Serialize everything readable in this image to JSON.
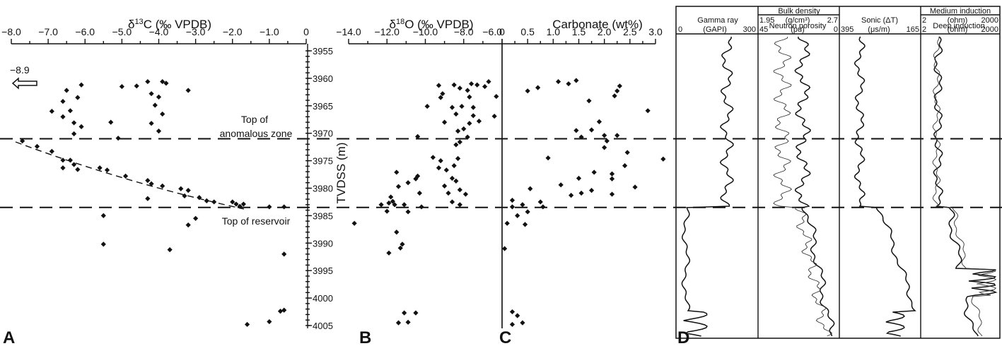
{
  "chart_data": [
    {
      "type": "scatter",
      "panel": "A",
      "title": "δ13C (‰ VPDB)",
      "xlim": [
        -8.0,
        0
      ],
      "x_ticks": [
        "−8.0",
        "−7.0",
        "−6.0",
        "−5.0",
        "−4.0",
        "−3.0",
        "−2.0",
        "−1.0",
        "0"
      ],
      "ylim": [
        3955,
        4005
      ],
      "offscale_label": "−8.9",
      "annotations": [
        "Top of",
        "anomalous zone",
        "Top of reservoir"
      ],
      "points": [
        [
          -6.1,
          3961.2
        ],
        [
          -5.0,
          3961.5
        ],
        [
          -4.6,
          3961.4
        ],
        [
          -4.3,
          3960.6
        ],
        [
          -3.9,
          3960.6
        ],
        [
          -3.8,
          3960.9
        ],
        [
          -3.2,
          3962.2
        ],
        [
          -6.5,
          3962.2
        ],
        [
          -6.2,
          3963.5
        ],
        [
          -6.6,
          3964.2
        ],
        [
          -6.9,
          3966.0
        ],
        [
          -6.4,
          3965.9
        ],
        [
          -6.6,
          3967.0
        ],
        [
          -6.3,
          3968.1
        ],
        [
          -6.1,
          3968.8
        ],
        [
          -6.3,
          3970.1
        ],
        [
          -5.3,
          3968.0
        ],
        [
          -4.2,
          3962.8
        ],
        [
          -4.0,
          3963.4
        ],
        [
          -4.1,
          3964.9
        ],
        [
          -3.9,
          3966.5
        ],
        [
          -4.2,
          3968.2
        ],
        [
          -4.0,
          3969.6
        ],
        [
          -5.1,
          3970.9
        ],
        [
          -7.7,
          3971.4
        ],
        [
          -7.3,
          3972.4
        ],
        [
          -6.9,
          3973.3
        ],
        [
          -6.6,
          3974.9
        ],
        [
          -6.4,
          3974.9
        ],
        [
          -6.3,
          3975.7
        ],
        [
          -6.6,
          3976.3
        ],
        [
          -6.2,
          3976.6
        ],
        [
          -5.6,
          3976.3
        ],
        [
          -5.4,
          3976.7
        ],
        [
          -4.9,
          3977.8
        ],
        [
          -4.3,
          3978.6
        ],
        [
          -4.2,
          3979.2
        ],
        [
          -3.9,
          3979.6
        ],
        [
          -3.4,
          3980.1
        ],
        [
          -3.2,
          3980.4
        ],
        [
          -3.3,
          3981.4
        ],
        [
          -2.9,
          3981.7
        ],
        [
          -2.7,
          3982.3
        ],
        [
          -2.5,
          3982.5
        ],
        [
          -2.0,
          3982.5
        ],
        [
          -1.9,
          3982.9
        ],
        [
          -1.8,
          3983.3
        ],
        [
          -1.7,
          3982.9
        ],
        [
          -1.0,
          3983.4
        ],
        [
          -0.6,
          3983.4
        ],
        [
          -4.3,
          3981.9
        ],
        [
          -5.5,
          3985.0
        ],
        [
          -3.2,
          3986.7
        ],
        [
          -3.0,
          3985.5
        ],
        [
          -5.5,
          3990.2
        ],
        [
          -3.7,
          3991.2
        ],
        [
          -0.6,
          3992.0
        ],
        [
          -0.6,
          4002.2
        ],
        [
          -0.7,
          4002.4
        ],
        [
          -1.0,
          4004.3
        ],
        [
          -1.6,
          4004.8
        ]
      ]
    },
    {
      "type": "scatter",
      "panel": "B",
      "title": "δ18O (‰ VPDB)",
      "xlim": [
        -14.0,
        -6.0
      ],
      "x_ticks": [
        "−14.0",
        "−12.0",
        "−10.0",
        "−8.0",
        "−6.0"
      ],
      "ylim": [
        3955,
        4005
      ],
      "points": [
        [
          -9.3,
          3961.3
        ],
        [
          -8.5,
          3961.2
        ],
        [
          -8.2,
          3961.8
        ],
        [
          -7.6,
          3961.0
        ],
        [
          -7.3,
          3961.2
        ],
        [
          -6.7,
          3960.6
        ],
        [
          -6.9,
          3961.5
        ],
        [
          -7.8,
          3962.2
        ],
        [
          -9.1,
          3962.8
        ],
        [
          -9.2,
          3963.5
        ],
        [
          -7.7,
          3963.4
        ],
        [
          -6.3,
          3963.3
        ],
        [
          -9.9,
          3965.1
        ],
        [
          -8.6,
          3965.3
        ],
        [
          -8.1,
          3965.1
        ],
        [
          -7.5,
          3965.3
        ],
        [
          -8.4,
          3966.5
        ],
        [
          -7.5,
          3966.8
        ],
        [
          -6.4,
          3966.9
        ],
        [
          -9.0,
          3968.0
        ],
        [
          -7.7,
          3968.2
        ],
        [
          -7.2,
          3967.8
        ],
        [
          -8.0,
          3969.2
        ],
        [
          -8.3,
          3969.6
        ],
        [
          -10.4,
          3970.6
        ],
        [
          -7.8,
          3970.7
        ],
        [
          -8.2,
          3971.6
        ],
        [
          -8.4,
          3972.1
        ],
        [
          -9.6,
          3974.4
        ],
        [
          -9.2,
          3975.0
        ],
        [
          -8.3,
          3974.6
        ],
        [
          -8.5,
          3975.9
        ],
        [
          -9.3,
          3976.3
        ],
        [
          -8.9,
          3976.7
        ],
        [
          -11.5,
          3977.1
        ],
        [
          -10.4,
          3977.8
        ],
        [
          -10.5,
          3978.3
        ],
        [
          -8.6,
          3978.2
        ],
        [
          -8.4,
          3978.7
        ],
        [
          -10.9,
          3979.0
        ],
        [
          -11.4,
          3979.7
        ],
        [
          -9.0,
          3979.6
        ],
        [
          -8.2,
          3980.3
        ],
        [
          -8.8,
          3980.9
        ],
        [
          -7.9,
          3981.1
        ],
        [
          -10.3,
          3980.9
        ],
        [
          -11.8,
          3981.6
        ],
        [
          -11.9,
          3982.7
        ],
        [
          -12.3,
          3983.0
        ],
        [
          -11.6,
          3983.0
        ],
        [
          -11.7,
          3982.4
        ],
        [
          -11.1,
          3983.0
        ],
        [
          -10.2,
          3983.4
        ],
        [
          -8.6,
          3982.5
        ],
        [
          -8.2,
          3983.0
        ],
        [
          -12.0,
          3984.2
        ],
        [
          -10.9,
          3984.3
        ],
        [
          -13.7,
          3986.4
        ],
        [
          -11.5,
          3988.0
        ],
        [
          -11.2,
          3990.2
        ],
        [
          -11.3,
          3990.9
        ],
        [
          -11.9,
          3991.8
        ],
        [
          -11.1,
          4002.7
        ],
        [
          -10.5,
          4002.7
        ],
        [
          -11.4,
          4004.5
        ],
        [
          -10.9,
          4004.4
        ]
      ]
    },
    {
      "type": "scatter",
      "panel": "C",
      "title": "Carbonate (wt%)",
      "xlim": [
        0,
        3.0
      ],
      "x_ticks": [
        "0",
        "0.5",
        "1.0",
        "1.5",
        "2.0",
        "2.5",
        "3.0"
      ],
      "ylim": [
        3955,
        4005
      ],
      "points": [
        [
          1.1,
          3960.6
        ],
        [
          1.45,
          3960.4
        ],
        [
          1.3,
          3961.0
        ],
        [
          0.7,
          3961.7
        ],
        [
          0.5,
          3962.3
        ],
        [
          2.3,
          3961.4
        ],
        [
          2.25,
          3962.3
        ],
        [
          2.2,
          3963.2
        ],
        [
          1.7,
          3964.1
        ],
        [
          2.85,
          3965.9
        ],
        [
          1.9,
          3967.9
        ],
        [
          1.45,
          3969.5
        ],
        [
          1.75,
          3969.4
        ],
        [
          2.0,
          3970.4
        ],
        [
          2.25,
          3970.4
        ],
        [
          1.55,
          3970.7
        ],
        [
          2.05,
          3971.4
        ],
        [
          2.0,
          3972.6
        ],
        [
          2.45,
          3973.5
        ],
        [
          0.9,
          3974.5
        ],
        [
          3.15,
          3974.7
        ],
        [
          2.4,
          3975.9
        ],
        [
          1.8,
          3977.1
        ],
        [
          2.15,
          3977.4
        ],
        [
          1.5,
          3978.2
        ],
        [
          2.15,
          3978.3
        ],
        [
          1.15,
          3979.4
        ],
        [
          0.55,
          3980.1
        ],
        [
          2.6,
          3979.8
        ],
        [
          1.75,
          3980.4
        ],
        [
          1.55,
          3980.9
        ],
        [
          1.35,
          3981.3
        ],
        [
          2.15,
          3981.1
        ],
        [
          0.2,
          3982.2
        ],
        [
          0.75,
          3982.5
        ],
        [
          0.4,
          3983.0
        ],
        [
          0.8,
          3983.4
        ],
        [
          0.2,
          3983.4
        ],
        [
          0.5,
          3984.3
        ],
        [
          0.3,
          3985.0
        ],
        [
          0.1,
          3986.4
        ],
        [
          0.45,
          3986.6
        ],
        [
          0.05,
          3991.0
        ],
        [
          0.2,
          4002.5
        ],
        [
          0.3,
          4003.2
        ],
        [
          0.4,
          4004.5
        ],
        [
          0.2,
          4004.8
        ]
      ]
    },
    {
      "type": "line",
      "panel": "D",
      "tracks": [
        {
          "label": "Gamma ray",
          "scale": [
            "0",
            "(GAPI)",
            "300"
          ]
        },
        {
          "label": "Bulk density",
          "scale": [
            "1.95",
            "(g/cm³)",
            "2.7"
          ],
          "label2": "Neutron porosity",
          "scale2": [
            "45",
            "(pu)",
            "0"
          ]
        },
        {
          "label": "Sonic (ΔT)",
          "scale": [
            "395",
            "(μs/m)",
            "165"
          ]
        },
        {
          "label": "Medium induction",
          "scale": [
            "2",
            "(ohm)",
            "2000"
          ],
          "label2": "Deep induction",
          "scale2": [
            "2",
            "(ohm)",
            "2000"
          ]
        }
      ]
    }
  ],
  "y_axis": {
    "label": "TVDSS (m)",
    "ticks": [
      "3955",
      "3960",
      "3965",
      "3970",
      "3975",
      "3980",
      "3985",
      "3990",
      "3995",
      "4000",
      "4005"
    ],
    "top_of_anomalous_zone": 3971,
    "top_of_reservoir": 3983.5
  },
  "panel_letters": [
    "A",
    "B",
    "C",
    "D"
  ]
}
